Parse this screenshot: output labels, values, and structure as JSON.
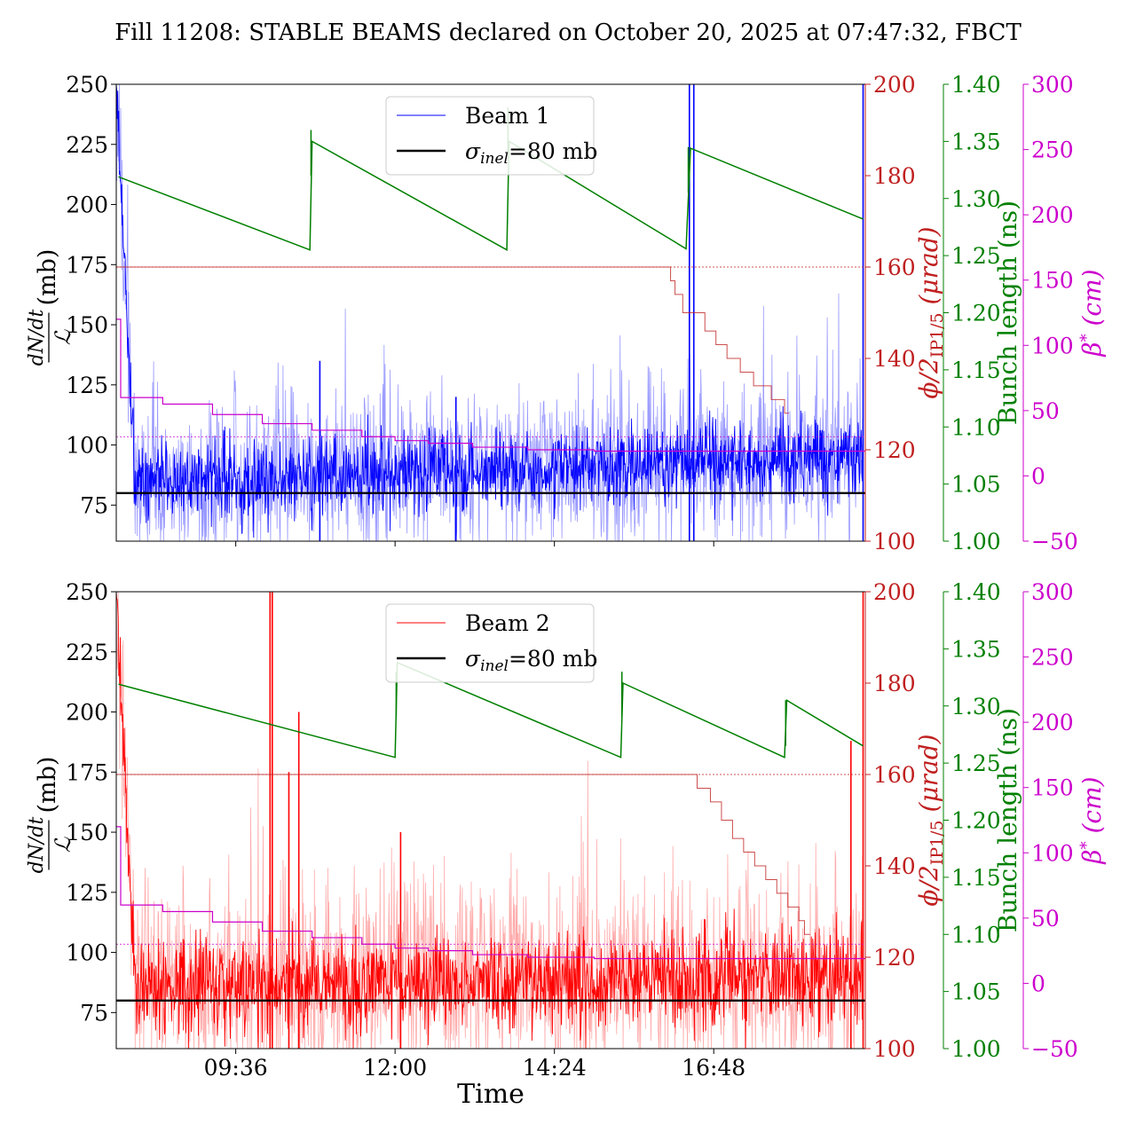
{
  "title": "Fill 11208: STABLE BEAMS declared on October 20, 2025 at 07:47:32, FBCT",
  "colors": {
    "beam1": "#0000ff",
    "beam1_light": "#9999ff",
    "beam2": "#ff0000",
    "beam2_light": "#ffaaaa",
    "crossing": "#c02020",
    "bunch": "#008000",
    "beta": "#cc00cc",
    "ref": "#000000"
  },
  "labels": {
    "ylabel_unit": "(mb)",
    "ylabel_num": "dN/dt",
    "ylabel_den": "ℒ",
    "crossing_main": "ϕ/2",
    "crossing_sub": "IP1/5",
    "crossing_unit": "(μrad)",
    "bunch": "Bunch length (ns)",
    "beta_main": "β",
    "beta_sup": "*",
    "beta_unit": "(cm)",
    "xlabel": "Time"
  },
  "chart_data": [
    {
      "type": "line",
      "panel": "top",
      "legend": {
        "placement": "upper-center",
        "entries": [
          {
            "label": "Beam 1"
          },
          {
            "label_main": "σ",
            "label_sub": "inel",
            "label_rest": "=80 mb"
          }
        ]
      },
      "x_axis": {
        "range": [
          "07:48",
          "19:05"
        ],
        "tick_labels": [
          "09:36",
          "12:00",
          "14:24",
          "16:48"
        ],
        "show_tick_labels": false
      },
      "y_left": {
        "range": [
          60,
          250
        ],
        "ticks": [
          75,
          100,
          125,
          150,
          175,
          200,
          225,
          250
        ]
      },
      "y_crossing": {
        "range": [
          100,
          200
        ],
        "ticks": [
          100,
          120,
          140,
          160,
          180,
          200
        ]
      },
      "y_bunch": {
        "range": [
          1.0,
          1.4
        ],
        "ticks": [
          "1.00",
          "1.05",
          "1.10",
          "1.15",
          "1.20",
          "1.25",
          "1.30",
          "1.35",
          "1.40"
        ]
      },
      "y_beta": {
        "range": [
          -50,
          300
        ],
        "ticks": [
          "−50",
          "0",
          "50",
          "100",
          "150",
          "200",
          "250",
          "300"
        ]
      },
      "series": [
        {
          "name": "Beam 1",
          "role": "cross_section_mb",
          "baseline": 85,
          "noise": 9,
          "spike_rate": 0.012,
          "start_peak": 250,
          "start_decay_end": "08:05",
          "drift_end": 95,
          "spikes": [
            {
              "t": "10:52",
              "v": 135
            },
            {
              "t": "12:55",
              "v": 120
            },
            {
              "t": "16:26",
              "v": 250
            },
            {
              "t": "16:30",
              "v": 250
            },
            {
              "t": "19:03",
              "v": 250
            }
          ]
        },
        {
          "name": "",
          "role": "sigma_inel_ref",
          "value": 80
        },
        {
          "name": "",
          "role": "crossing_angle_urad",
          "steps": [
            [
              "07:48",
              160
            ],
            [
              "16:06",
              160
            ],
            [
              "16:09",
              157
            ],
            [
              "16:13",
              154
            ],
            [
              "16:20",
              150
            ],
            [
              "16:40",
              146
            ],
            [
              "16:50",
              143
            ],
            [
              "17:00",
              140
            ],
            [
              "17:12",
              137
            ],
            [
              "17:24",
              134
            ],
            [
              "17:40",
              131
            ],
            [
              "17:52",
              128
            ],
            [
              "17:56",
              128
            ]
          ],
          "ref_line": 160
        },
        {
          "name": "",
          "role": "bunch_length_ns",
          "segments": [
            [
              [
                "07:50",
                1.319
              ],
              [
                "10:43",
                1.255
              ]
            ],
            [
              [
                "10:45",
                1.35
              ],
              [
                "13:41",
                1.255
              ]
            ],
            [
              [
                "13:43",
                1.35
              ],
              [
                "16:23",
                1.256
              ]
            ],
            [
              [
                "16:27",
                1.344
              ],
              [
                "19:03",
                1.282
              ]
            ]
          ],
          "refill_markers": [
            {
              "t": "10:44",
              "v": 1.36
            },
            {
              "t": "13:42",
              "v": 1.38
            },
            {
              "t": "16:25",
              "v": 1.345
            }
          ]
        },
        {
          "name": "",
          "role": "beta_star_cm",
          "steps": [
            [
              "07:48",
              120
            ],
            [
              "07:52",
              60
            ],
            [
              "08:30",
              55
            ],
            [
              "09:15",
              47
            ],
            [
              "10:00",
              40
            ],
            [
              "10:45",
              35
            ],
            [
              "11:30",
              30
            ],
            [
              "12:00",
              27
            ],
            [
              "12:30",
              25
            ],
            [
              "13:10",
              22
            ],
            [
              "14:00",
              20
            ],
            [
              "15:00",
              19
            ],
            [
              "19:05",
              19
            ]
          ],
          "ref_line": 30
        }
      ]
    },
    {
      "type": "line",
      "panel": "bottom",
      "legend": {
        "placement": "upper-center",
        "entries": [
          {
            "label": "Beam 2"
          },
          {
            "label_main": "σ",
            "label_sub": "inel",
            "label_rest": "=80 mb"
          }
        ]
      },
      "x_axis": {
        "range": [
          "07:48",
          "19:05"
        ],
        "tick_labels": [
          "09:36",
          "12:00",
          "14:24",
          "16:48"
        ],
        "show_tick_labels": true
      },
      "y_left": {
        "range": [
          60,
          250
        ],
        "ticks": [
          75,
          100,
          125,
          150,
          175,
          200,
          225,
          250
        ]
      },
      "y_crossing": {
        "range": [
          100,
          200
        ],
        "ticks": [
          100,
          120,
          140,
          160,
          180,
          200
        ]
      },
      "y_bunch": {
        "range": [
          1.0,
          1.4
        ],
        "ticks": [
          "1.00",
          "1.05",
          "1.10",
          "1.15",
          "1.20",
          "1.25",
          "1.30",
          "1.35",
          "1.40"
        ]
      },
      "y_beta": {
        "range": [
          -50,
          300
        ],
        "ticks": [
          "−50",
          "0",
          "50",
          "100",
          "150",
          "200",
          "250",
          "300"
        ]
      },
      "series": [
        {
          "name": "Beam 2",
          "role": "cross_section_mb",
          "baseline": 86,
          "noise": 11,
          "spike_rate": 0.02,
          "start_peak": 250,
          "start_decay_end": "08:05",
          "drift_end": 90,
          "spikes": [
            {
              "t": "10:07",
              "v": 250
            },
            {
              "t": "10:09",
              "v": 250
            },
            {
              "t": "10:24",
              "v": 175
            },
            {
              "t": "10:33",
              "v": 200
            },
            {
              "t": "12:05",
              "v": 150
            },
            {
              "t": "18:52",
              "v": 188
            },
            {
              "t": "19:03",
              "v": 250
            }
          ]
        },
        {
          "name": "",
          "role": "sigma_inel_ref",
          "value": 80
        },
        {
          "name": "",
          "role": "crossing_angle_urad",
          "steps": [
            [
              "07:48",
              160
            ],
            [
              "16:30",
              160
            ],
            [
              "16:33",
              157
            ],
            [
              "16:45",
              154
            ],
            [
              "16:55",
              150
            ],
            [
              "17:05",
              146
            ],
            [
              "17:15",
              143
            ],
            [
              "17:25",
              140
            ],
            [
              "17:35",
              137
            ],
            [
              "17:45",
              134
            ],
            [
              "17:55",
              131
            ],
            [
              "18:05",
              128
            ],
            [
              "18:10",
              125
            ],
            [
              "18:15",
              125
            ]
          ],
          "ref_line": 160
        },
        {
          "name": "",
          "role": "bunch_length_ns",
          "segments": [
            [
              [
                "07:50",
                1.319
              ],
              [
                "12:00",
                1.255
              ]
            ],
            [
              [
                "12:02",
                1.338
              ],
              [
                "15:24",
                1.255
              ]
            ],
            [
              [
                "15:26",
                1.32
              ],
              [
                "17:52",
                1.255
              ]
            ],
            [
              [
                "17:54",
                1.305
              ],
              [
                "19:03",
                1.265
              ]
            ]
          ],
          "refill_markers": [
            {
              "t": "12:01",
              "v": 1.33
            },
            {
              "t": "15:25",
              "v": 1.33
            },
            {
              "t": "17:53",
              "v": 1.305
            }
          ]
        },
        {
          "name": "",
          "role": "beta_star_cm",
          "steps": [
            [
              "07:48",
              120
            ],
            [
              "07:52",
              60
            ],
            [
              "08:30",
              55
            ],
            [
              "09:15",
              47
            ],
            [
              "10:00",
              40
            ],
            [
              "10:45",
              35
            ],
            [
              "11:30",
              30
            ],
            [
              "12:00",
              27
            ],
            [
              "12:30",
              25
            ],
            [
              "13:10",
              22
            ],
            [
              "14:00",
              20
            ],
            [
              "15:00",
              19
            ],
            [
              "19:05",
              19
            ]
          ],
          "ref_line": 30
        }
      ]
    }
  ]
}
